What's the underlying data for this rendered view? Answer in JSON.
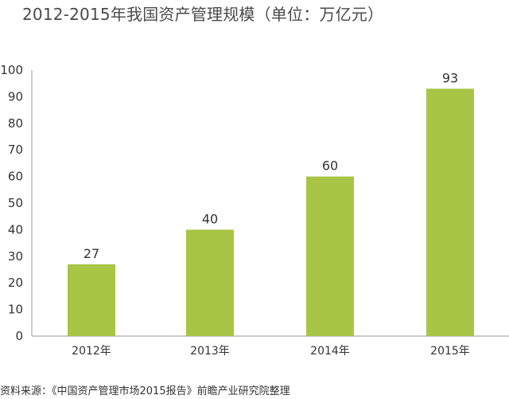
{
  "chart_data": {
    "type": "bar",
    "title": "2012-2015年我国资产管理规模（单位：万亿元）",
    "categories": [
      "2012年",
      "2013年",
      "2014年",
      "2015年"
    ],
    "values": [
      27,
      40,
      60,
      93
    ],
    "data_labels": [
      "27",
      "40",
      "60",
      "93"
    ],
    "y_ticks": [
      "0",
      "10",
      "20",
      "30",
      "40",
      "50",
      "60",
      "70",
      "80",
      "90",
      "100"
    ],
    "ylim": [
      0,
      100
    ],
    "grid": false,
    "legend": "none",
    "bar_color": "#a8c545",
    "source": "资料来源：《中国资产管理市场2015报告》前瞻产业研究院整理"
  }
}
